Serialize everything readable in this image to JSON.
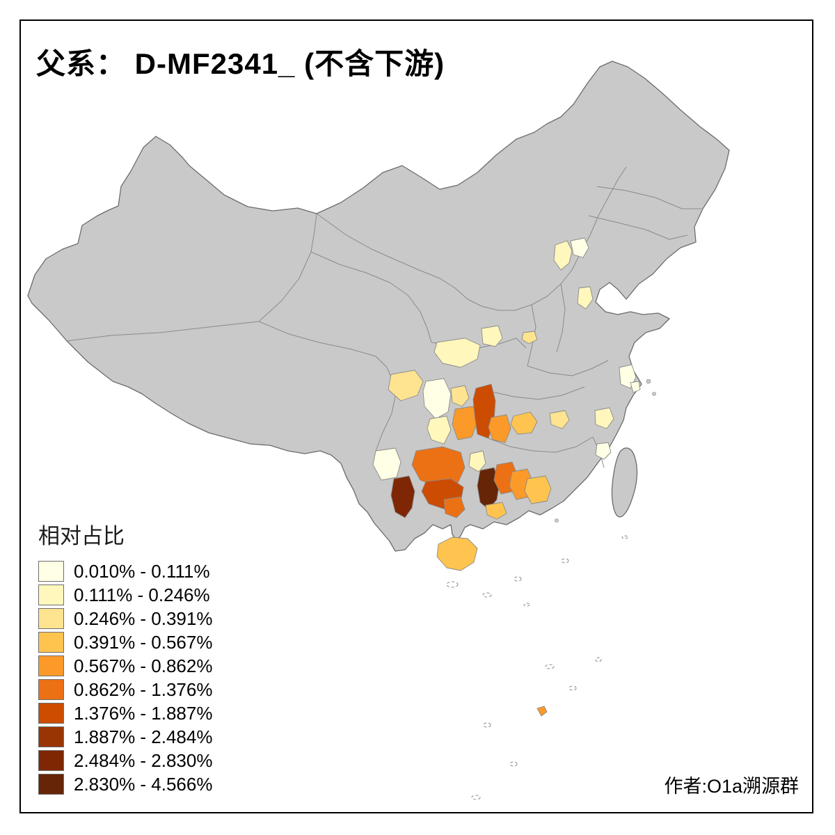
{
  "header": {
    "title": "父系： D-MF2341_ (不含下游)"
  },
  "legend": {
    "title": "相对占比",
    "bins": [
      {
        "label": "0.010% - 0.111%",
        "color": "#FFFFE5"
      },
      {
        "label": "0.111% - 0.246%",
        "color": "#FFF7BC"
      },
      {
        "label": "0.246% - 0.391%",
        "color": "#FEE391"
      },
      {
        "label": "0.391% - 0.567%",
        "color": "#FEC44F"
      },
      {
        "label": "0.567% - 0.862%",
        "color": "#FB9A29"
      },
      {
        "label": "0.862% - 1.376%",
        "color": "#EC7014"
      },
      {
        "label": "1.376% - 1.887%",
        "color": "#CC4C02"
      },
      {
        "label": "1.887% - 2.484%",
        "color": "#993404"
      },
      {
        "label": "2.484% - 2.830%",
        "color": "#7F2704"
      },
      {
        "label": "2.830% - 4.566%",
        "color": "#662506"
      }
    ]
  },
  "footer": {
    "credit": "作者:O1a溯源群"
  },
  "map": {
    "land_fill": "#C9C9C9",
    "ocean_fill": "#FFFFFF",
    "frame_color": "#000000",
    "regions": [
      {
        "id": "region-01",
        "bin": 1
      },
      {
        "id": "region-02",
        "bin": 0
      },
      {
        "id": "region-03",
        "bin": 1
      },
      {
        "id": "region-04",
        "bin": 2
      },
      {
        "id": "region-05",
        "bin": 0
      },
      {
        "id": "region-06",
        "bin": 0
      },
      {
        "id": "region-07",
        "bin": 1
      },
      {
        "id": "region-08",
        "bin": 0
      },
      {
        "id": "region-09",
        "bin": 3
      },
      {
        "id": "region-10",
        "bin": 2
      },
      {
        "id": "region-11",
        "bin": 1
      },
      {
        "id": "region-12",
        "bin": 2
      },
      {
        "id": "region-13",
        "bin": 0
      },
      {
        "id": "region-14",
        "bin": 2
      },
      {
        "id": "region-15",
        "bin": 1
      },
      {
        "id": "region-16",
        "bin": 4
      },
      {
        "id": "region-17",
        "bin": 6
      },
      {
        "id": "region-18",
        "bin": 4
      },
      {
        "id": "region-19",
        "bin": 5
      },
      {
        "id": "region-20",
        "bin": 6
      },
      {
        "id": "region-21",
        "bin": 8
      },
      {
        "id": "region-22",
        "bin": 1
      },
      {
        "id": "region-23",
        "bin": 9
      },
      {
        "id": "region-24",
        "bin": 5
      },
      {
        "id": "region-25",
        "bin": 4
      },
      {
        "id": "region-26",
        "bin": 3
      },
      {
        "id": "region-27",
        "bin": 3
      },
      {
        "id": "region-28",
        "bin": 5
      },
      {
        "id": "region-29",
        "bin": 0
      },
      {
        "id": "region-30",
        "bin": 3
      },
      {
        "id": "region-31",
        "bin": 4
      },
      {
        "id": "region-32",
        "bin": 1
      }
    ]
  }
}
